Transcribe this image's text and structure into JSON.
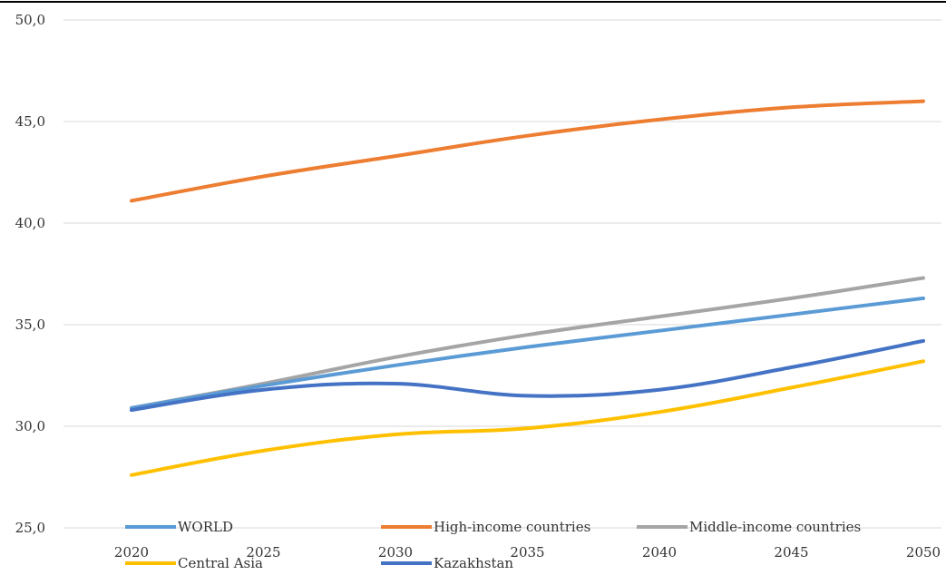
{
  "chart_data": {
    "type": "line",
    "title": "",
    "xlabel": "",
    "ylabel": "",
    "x": [
      "2020",
      "2025",
      "2030",
      "2035",
      "2040",
      "2045",
      "2050"
    ],
    "ylim": [
      25.0,
      50.0
    ],
    "yticks": [
      "25,0",
      "30,0",
      "35,0",
      "40,0",
      "45,0",
      "50,0"
    ],
    "ytick_values": [
      25,
      30,
      35,
      40,
      45,
      50
    ],
    "grid": true,
    "legend_position": "bottom",
    "series": [
      {
        "name": "WORLD",
        "color": "#5b9bd5",
        "values": [
          30.9,
          32.0,
          33.0,
          33.9,
          34.7,
          35.5,
          36.3
        ]
      },
      {
        "name": "High-income countries",
        "color": "#ed7d31",
        "values": [
          41.1,
          42.3,
          43.3,
          44.3,
          45.1,
          45.7,
          46.0
        ]
      },
      {
        "name": "Middle-income countries",
        "color": "#a5a5a5",
        "values": [
          30.9,
          32.1,
          33.4,
          34.5,
          35.4,
          36.3,
          37.3
        ]
      },
      {
        "name": "Central Asia",
        "color": "#ffc000",
        "values": [
          27.6,
          28.8,
          29.6,
          29.9,
          30.7,
          31.9,
          33.2
        ]
      },
      {
        "name": "Kazakhstan",
        "color": "#4472c4",
        "values": [
          30.8,
          31.8,
          32.1,
          31.5,
          31.8,
          32.9,
          34.2
        ]
      }
    ]
  }
}
